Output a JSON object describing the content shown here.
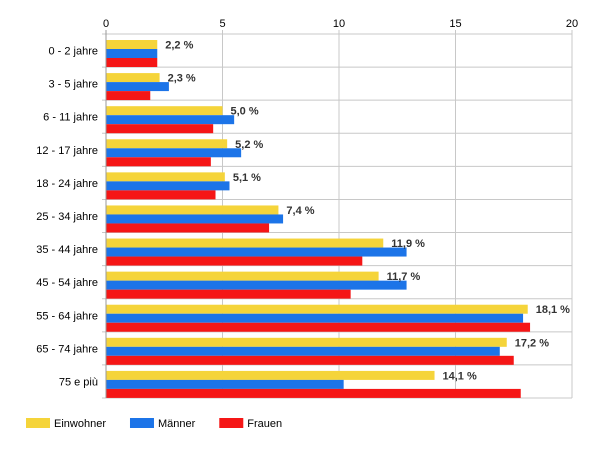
{
  "chart_data": {
    "type": "bar",
    "orientation": "horizontal",
    "categories": [
      "0 - 2 jahre",
      "3 - 5 jahre",
      "6 - 11 jahre",
      "12 - 17 jahre",
      "18 - 24 jahre",
      "25 - 34 jahre",
      "35 - 44 jahre",
      "45 - 54 jahre",
      "55 - 64 jahre",
      "65 - 74 jahre",
      "75 e più"
    ],
    "series": [
      {
        "name": "Einwohner",
        "color": "#f5d43a",
        "values": [
          2.2,
          2.3,
          5.0,
          5.2,
          5.1,
          7.4,
          11.9,
          11.7,
          18.1,
          17.2,
          14.1
        ]
      },
      {
        "name": "Männer",
        "color": "#1c74e8",
        "values": [
          2.2,
          2.7,
          5.5,
          5.8,
          5.3,
          7.6,
          12.9,
          12.9,
          17.9,
          16.9,
          10.2
        ]
      },
      {
        "name": "Frauen",
        "color": "#f51616",
        "values": [
          2.2,
          1.9,
          4.6,
          4.5,
          4.7,
          7.0,
          11.0,
          10.5,
          18.2,
          17.5,
          17.8
        ]
      }
    ],
    "data_labels": [
      "2,2 %",
      "2,3 %",
      "5,0 %",
      "5,2 %",
      "5,1 %",
      "7,4 %",
      "11,9 %",
      "11,7 %",
      "18,1 %",
      "17,2 %",
      "14,1 %"
    ],
    "xlim": [
      0,
      20
    ],
    "x_ticks": [
      "0",
      "5",
      "10",
      "15",
      "20"
    ],
    "x_tick_values": [
      0,
      5,
      10,
      15,
      20
    ],
    "x_axis_position": "top",
    "grid": true,
    "legend_position": "bottom-left",
    "title": "",
    "xlabel": "",
    "ylabel": ""
  }
}
